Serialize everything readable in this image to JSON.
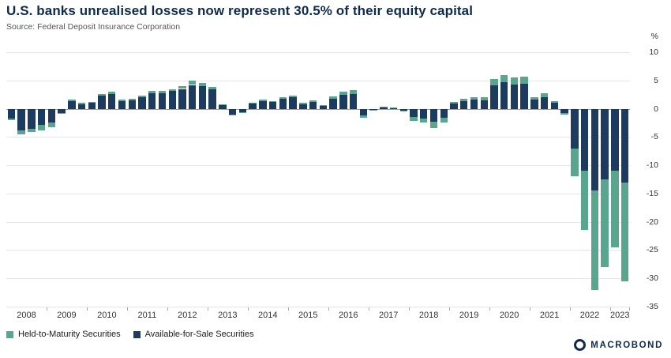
{
  "header": {
    "title": "U.S. banks unrealised losses now represent 30.5% of their equity capital",
    "source": "Source: Federal Deposit Insurance Corporation"
  },
  "axes": {
    "unit_label": "%"
  },
  "legend": {
    "items": [
      {
        "label": "Held-to-Maturity Securities",
        "color": "#5aa58e"
      },
      {
        "label": "Available-for-Sale Securities",
        "color": "#1d3a5f"
      }
    ]
  },
  "branding": {
    "logo_text": "MACROBOND"
  },
  "chart_data": {
    "type": "bar",
    "stacked": true,
    "title": "U.S. banks unrealised losses now represent 30.5% of their equity capital",
    "xlabel": "",
    "ylabel": "%",
    "ylim": [
      -35,
      10
    ],
    "yticks": [
      10,
      5,
      0,
      -5,
      -10,
      -15,
      -20,
      -25,
      -30,
      -35
    ],
    "grid": true,
    "legend_position": "bottom-left",
    "categories": [
      "2008 Q1",
      "2008 Q2",
      "2008 Q3",
      "2008 Q4",
      "2009 Q1",
      "2009 Q2",
      "2009 Q3",
      "2009 Q4",
      "2010 Q1",
      "2010 Q2",
      "2010 Q3",
      "2010 Q4",
      "2011 Q1",
      "2011 Q2",
      "2011 Q3",
      "2011 Q4",
      "2012 Q1",
      "2012 Q2",
      "2012 Q3",
      "2012 Q4",
      "2013 Q1",
      "2013 Q2",
      "2013 Q3",
      "2013 Q4",
      "2014 Q1",
      "2014 Q2",
      "2014 Q3",
      "2014 Q4",
      "2015 Q1",
      "2015 Q2",
      "2015 Q3",
      "2015 Q4",
      "2016 Q1",
      "2016 Q2",
      "2016 Q3",
      "2016 Q4",
      "2017 Q1",
      "2017 Q2",
      "2017 Q3",
      "2017 Q4",
      "2018 Q1",
      "2018 Q2",
      "2018 Q3",
      "2018 Q4",
      "2019 Q1",
      "2019 Q2",
      "2019 Q3",
      "2019 Q4",
      "2020 Q1",
      "2020 Q2",
      "2020 Q3",
      "2020 Q4",
      "2021 Q1",
      "2021 Q2",
      "2021 Q3",
      "2021 Q4",
      "2022 Q1",
      "2022 Q2",
      "2022 Q3",
      "2022 Q4",
      "2023 Q1",
      "2023 Q2"
    ],
    "series": [
      {
        "name": "Available-for-Sale Securities",
        "color": "#1d3a5f",
        "values": [
          -1.7,
          -3.9,
          -3.5,
          -2.9,
          -2.5,
          -0.7,
          1.3,
          0.8,
          1.0,
          2.3,
          2.6,
          1.4,
          1.5,
          2.0,
          2.7,
          2.8,
          3.1,
          3.5,
          4.2,
          4.0,
          3.4,
          0.7,
          -1.0,
          -0.6,
          0.9,
          1.4,
          1.2,
          1.8,
          2.0,
          0.8,
          1.2,
          0.5,
          1.7,
          2.4,
          2.6,
          -1.2,
          -0.2,
          0.3,
          0.1,
          -0.3,
          -1.5,
          -1.7,
          -2.3,
          -1.6,
          0.9,
          1.3,
          1.6,
          1.5,
          4.1,
          4.7,
          4.3,
          4.4,
          1.6,
          2.1,
          1.1,
          -0.7,
          -7.0,
          -11.0,
          -14.5,
          -12.5,
          -11.0,
          -13.0
        ]
      },
      {
        "name": "Held-to-Maturity Securities",
        "color": "#5aa58e",
        "values": [
          -0.3,
          -0.7,
          -0.6,
          -0.9,
          -0.8,
          -0.2,
          0.3,
          0.2,
          0.2,
          0.3,
          0.4,
          0.2,
          0.2,
          0.3,
          0.4,
          0.4,
          0.4,
          0.5,
          0.7,
          0.6,
          0.5,
          0.1,
          -0.2,
          -0.1,
          0.2,
          0.2,
          0.2,
          0.3,
          0.3,
          0.2,
          0.3,
          0.2,
          0.5,
          0.6,
          0.7,
          -0.4,
          -0.1,
          0.1,
          0.1,
          -0.2,
          -0.6,
          -0.8,
          -1.1,
          -0.8,
          0.3,
          0.4,
          0.5,
          0.5,
          1.1,
          1.3,
          1.2,
          1.2,
          0.5,
          0.6,
          0.3,
          -0.3,
          -5.0,
          -10.5,
          -17.5,
          -15.5,
          -13.5,
          -17.5
        ]
      }
    ]
  }
}
